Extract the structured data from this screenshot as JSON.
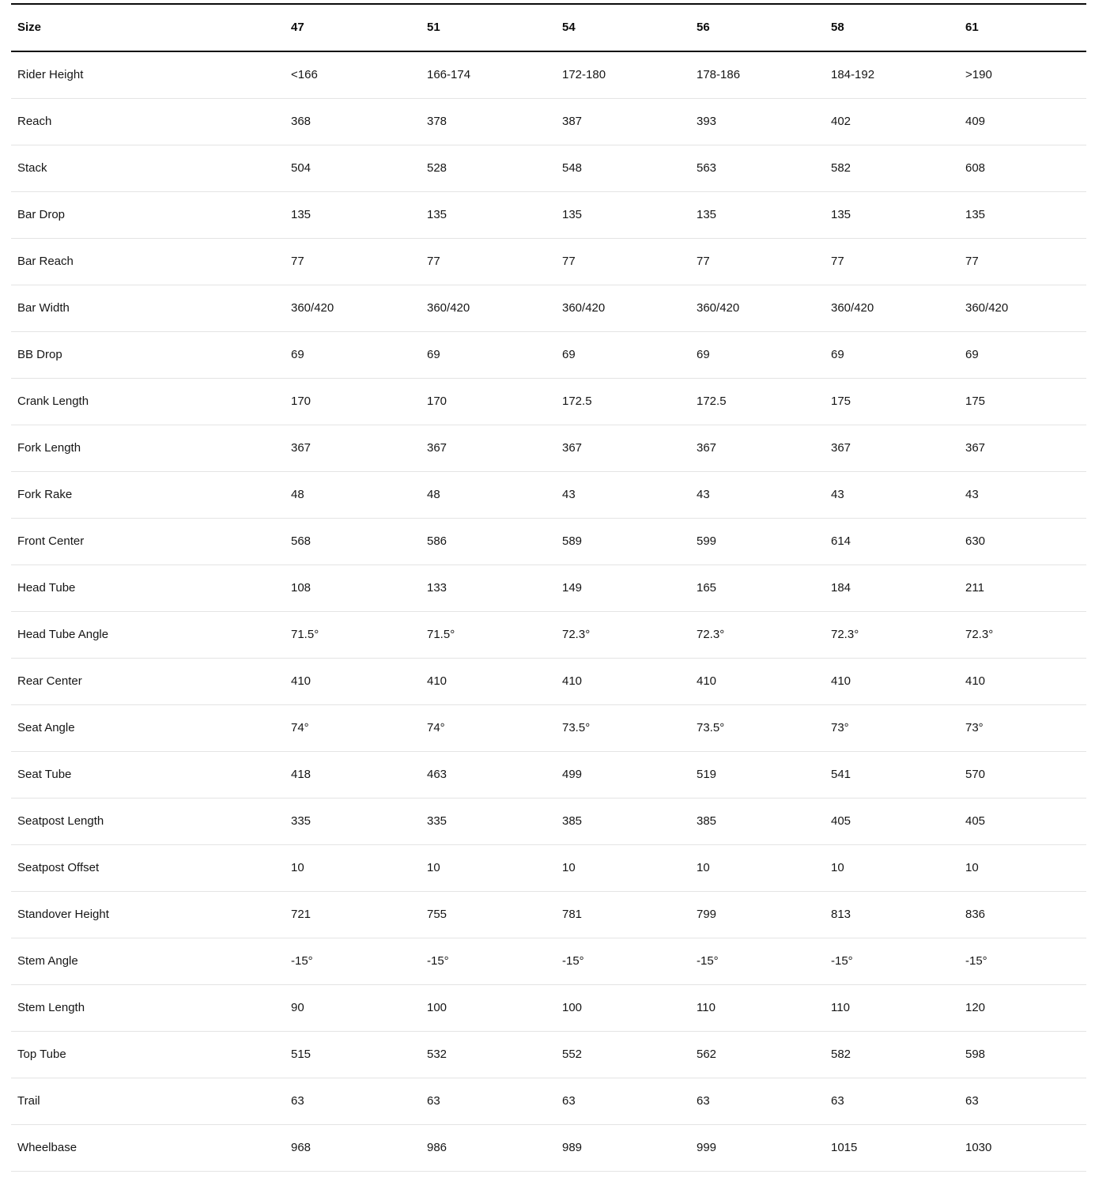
{
  "table": {
    "header": {
      "label": "Size",
      "sizes": [
        "47",
        "51",
        "54",
        "56",
        "58",
        "61"
      ]
    },
    "rows": [
      {
        "label": "Rider Height",
        "values": [
          "<166",
          "166-174",
          "172-180",
          "178-186",
          "184-192",
          ">190"
        ]
      },
      {
        "label": "Reach",
        "values": [
          "368",
          "378",
          "387",
          "393",
          "402",
          "409"
        ]
      },
      {
        "label": "Stack",
        "values": [
          "504",
          "528",
          "548",
          "563",
          "582",
          "608"
        ]
      },
      {
        "label": "Bar Drop",
        "values": [
          "135",
          "135",
          "135",
          "135",
          "135",
          "135"
        ]
      },
      {
        "label": "Bar Reach",
        "values": [
          "77",
          "77",
          "77",
          "77",
          "77",
          "77"
        ]
      },
      {
        "label": "Bar Width",
        "values": [
          "360/420",
          "360/420",
          "360/420",
          "360/420",
          "360/420",
          "360/420"
        ]
      },
      {
        "label": "BB Drop",
        "values": [
          "69",
          "69",
          "69",
          "69",
          "69",
          "69"
        ]
      },
      {
        "label": "Crank Length",
        "values": [
          "170",
          "170",
          "172.5",
          "172.5",
          "175",
          "175"
        ]
      },
      {
        "label": "Fork Length",
        "values": [
          "367",
          "367",
          "367",
          "367",
          "367",
          "367"
        ]
      },
      {
        "label": "Fork Rake",
        "values": [
          "48",
          "48",
          "43",
          "43",
          "43",
          "43"
        ]
      },
      {
        "label": "Front Center",
        "values": [
          "568",
          "586",
          "589",
          "599",
          "614",
          "630"
        ]
      },
      {
        "label": "Head Tube",
        "values": [
          "108",
          "133",
          "149",
          "165",
          "184",
          "211"
        ]
      },
      {
        "label": "Head Tube Angle",
        "values": [
          "71.5°",
          "71.5°",
          "72.3°",
          "72.3°",
          "72.3°",
          "72.3°"
        ]
      },
      {
        "label": "Rear Center",
        "values": [
          "410",
          "410",
          "410",
          "410",
          "410",
          "410"
        ]
      },
      {
        "label": "Seat Angle",
        "values": [
          "74°",
          "74°",
          "73.5°",
          "73.5°",
          "73°",
          "73°"
        ]
      },
      {
        "label": "Seat Tube",
        "values": [
          "418",
          "463",
          "499",
          "519",
          "541",
          "570"
        ]
      },
      {
        "label": "Seatpost Length",
        "values": [
          "335",
          "335",
          "385",
          "385",
          "405",
          "405"
        ]
      },
      {
        "label": "Seatpost Offset",
        "values": [
          "10",
          "10",
          "10",
          "10",
          "10",
          "10"
        ]
      },
      {
        "label": "Standover Height",
        "values": [
          "721",
          "755",
          "781",
          "799",
          "813",
          "836"
        ]
      },
      {
        "label": "Stem Angle",
        "values": [
          "-15°",
          "-15°",
          "-15°",
          "-15°",
          "-15°",
          "-15°"
        ]
      },
      {
        "label": "Stem Length",
        "values": [
          "90",
          "100",
          "100",
          "110",
          "110",
          "120"
        ]
      },
      {
        "label": "Top Tube",
        "values": [
          "515",
          "532",
          "552",
          "562",
          "582",
          "598"
        ]
      },
      {
        "label": "Trail",
        "values": [
          "63",
          "63",
          "63",
          "63",
          "63",
          "63"
        ]
      },
      {
        "label": "Wheelbase",
        "values": [
          "968",
          "986",
          "989",
          "999",
          "1015",
          "1030"
        ]
      }
    ],
    "colors": {
      "strong_border": "#0c0c0c",
      "light_border": "#e4e4e4",
      "text": "#161616"
    }
  }
}
